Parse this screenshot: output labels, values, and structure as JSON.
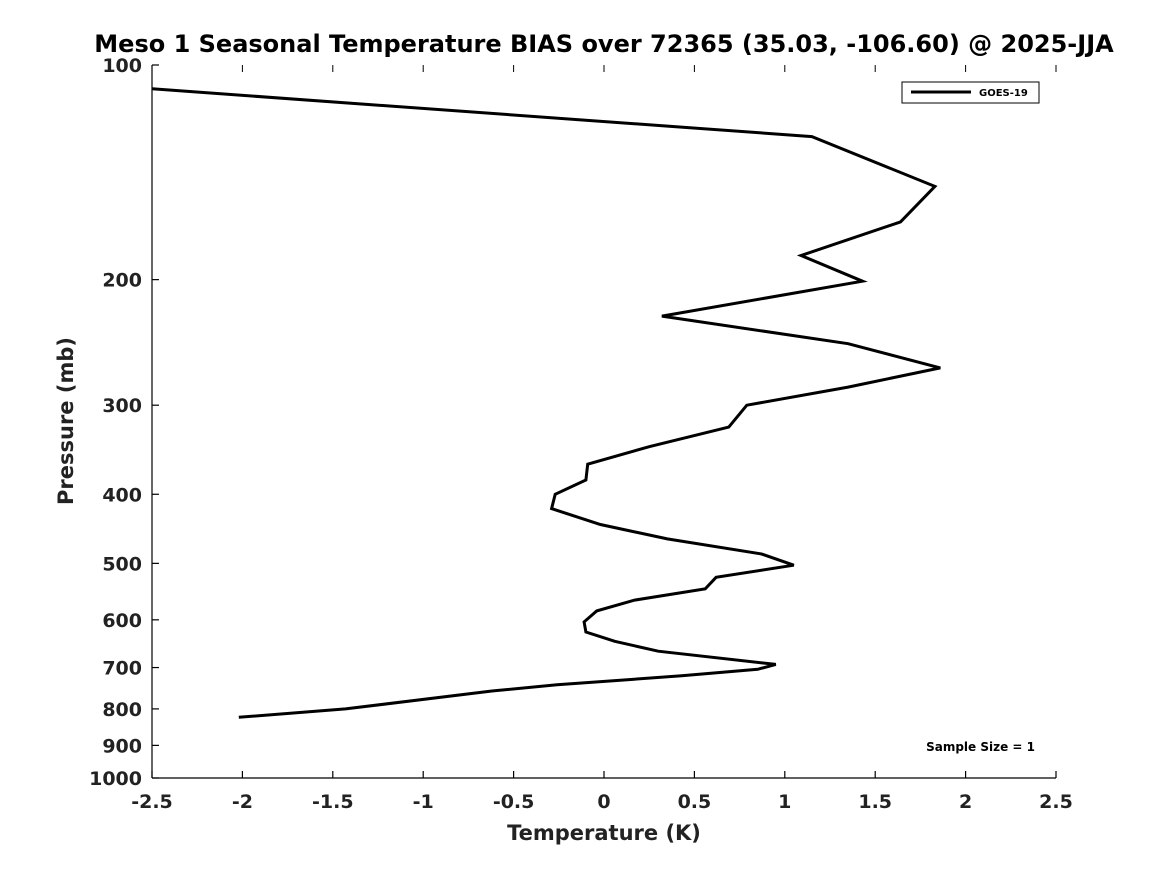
{
  "chart_data": {
    "type": "line",
    "title": "Meso 1 Seasonal Temperature BIAS over 72365 (35.03, -106.60) @ 2025-JJA",
    "xlabel": "Temperature (K)",
    "ylabel": "Pressure (mb)",
    "xlim": [
      -2.5,
      2.5
    ],
    "ylim": [
      100,
      1000
    ],
    "y_scale": "log",
    "y_reversed": true,
    "x_ticks": [
      -2.5,
      -2,
      -1.5,
      -1,
      -0.5,
      0,
      0.5,
      1,
      1.5,
      2,
      2.5
    ],
    "x_tick_labels": [
      "-2.5",
      "-2",
      "-1.5",
      "-1",
      "-0.5",
      "0",
      "0.5",
      "1",
      "1.5",
      "2",
      "2.5"
    ],
    "y_ticks": [
      100,
      200,
      300,
      400,
      500,
      600,
      700,
      800,
      900,
      1000
    ],
    "y_tick_labels": [
      "100",
      "200",
      "300",
      "400",
      "500",
      "600",
      "700",
      "800",
      "900",
      "1000"
    ],
    "grid": false,
    "legend_position": "top-right",
    "series": [
      {
        "name": "GOES-19",
        "color": "#000000",
        "points": [
          {
            "x": -2.5,
            "p": 108
          },
          {
            "x": 1.15,
            "p": 126
          },
          {
            "x": 1.83,
            "p": 148
          },
          {
            "x": 1.64,
            "p": 166
          },
          {
            "x": 1.09,
            "p": 185
          },
          {
            "x": 1.43,
            "p": 201
          },
          {
            "x": 0.32,
            "p": 225
          },
          {
            "x": 1.35,
            "p": 246
          },
          {
            "x": 1.86,
            "p": 266
          },
          {
            "x": 1.35,
            "p": 283
          },
          {
            "x": 0.79,
            "p": 300
          },
          {
            "x": 0.69,
            "p": 322
          },
          {
            "x": 0.25,
            "p": 343
          },
          {
            "x": -0.09,
            "p": 363
          },
          {
            "x": -0.1,
            "p": 382
          },
          {
            "x": -0.27,
            "p": 400
          },
          {
            "x": -0.29,
            "p": 419
          },
          {
            "x": -0.02,
            "p": 441
          },
          {
            "x": 0.35,
            "p": 462
          },
          {
            "x": 0.87,
            "p": 485
          },
          {
            "x": 1.05,
            "p": 503
          },
          {
            "x": 0.62,
            "p": 523
          },
          {
            "x": 0.56,
            "p": 543
          },
          {
            "x": 0.17,
            "p": 563
          },
          {
            "x": -0.04,
            "p": 583
          },
          {
            "x": -0.11,
            "p": 604
          },
          {
            "x": -0.1,
            "p": 624
          },
          {
            "x": 0.06,
            "p": 643
          },
          {
            "x": 0.3,
            "p": 664
          },
          {
            "x": 0.95,
            "p": 693
          },
          {
            "x": 0.85,
            "p": 704
          },
          {
            "x": 0.43,
            "p": 719
          },
          {
            "x": 0.1,
            "p": 729
          },
          {
            "x": -0.26,
            "p": 740
          },
          {
            "x": -0.62,
            "p": 755
          },
          {
            "x": -1.43,
            "p": 800
          },
          {
            "x": -2.02,
            "p": 822
          }
        ]
      }
    ],
    "annotations": [
      "Sample Size = 1"
    ]
  }
}
